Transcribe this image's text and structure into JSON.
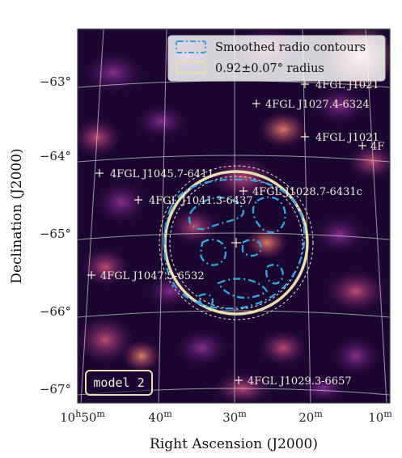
{
  "figure": {
    "xlabel": "Right Ascension (J2000)",
    "ylabel": "Declination (J2000)",
    "ra_ticks": [
      {
        "h": "10",
        "m": "50",
        "s_h": "h",
        "s_m": "m"
      },
      {
        "m": "40",
        "s_m": "m"
      },
      {
        "m": "30",
        "s_m": "m"
      },
      {
        "m": "20",
        "s_m": "m"
      },
      {
        "m": "10",
        "s_m": "m"
      }
    ],
    "dec_ticks": [
      "−63°",
      "−64°",
      "−65°",
      "−66°",
      "−67°"
    ],
    "legend": {
      "contours_label": "Smoothed radio contours",
      "radius_label": "0.92±0.07° radius"
    },
    "model_badge": "model 2",
    "sources": [
      "4FGL J1021",
      "4FGL J1027.4-6324",
      "4FGL J1021",
      "4F",
      "4FGL J1045.7-6411",
      "4FGL J1028.7-6431c",
      "4FGL J1041.3-6437",
      "4FGL J1047.5-6532",
      "4FGL J1029.3-6657"
    ],
    "colors": {
      "radius_ring": "#e6dfb4",
      "contours": "#3aa0d8",
      "background_map": "#1a0630",
      "frame": "#444444"
    }
  }
}
